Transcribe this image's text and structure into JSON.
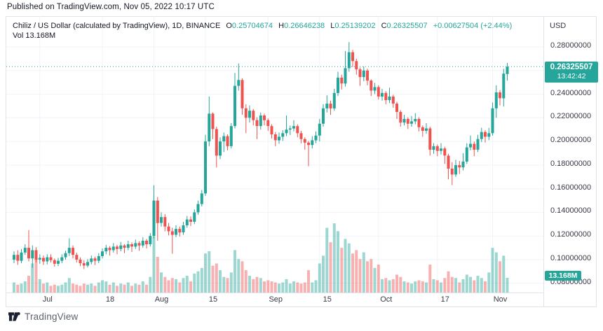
{
  "published_line": "Published on TradingView.com, Nov 05, 2022 10:17 UTC",
  "legend": {
    "title": "Chiliz / US Dollar (calculated by TradingView), 1D, BINANCE",
    "ohlc": [
      {
        "label": "O",
        "value": "0.25704674"
      },
      {
        "label": "H",
        "value": "0.26646238"
      },
      {
        "label": "L",
        "value": "0.25139202"
      },
      {
        "label": "C",
        "value": "0.26325507"
      }
    ],
    "change": "+0.00627504 (+2.44%)",
    "vol_label": "Vol",
    "vol_value": "13.168M"
  },
  "price_axis": {
    "currency": "USD",
    "ticks": [
      {
        "label": "0.28000000",
        "price": 0.28
      },
      {
        "label": "0.24000000",
        "price": 0.24
      },
      {
        "label": "0.22000000",
        "price": 0.22
      },
      {
        "label": "0.20000000",
        "price": 0.2
      },
      {
        "label": "0.18000000",
        "price": 0.18
      },
      {
        "label": "0.16000000",
        "price": 0.16
      },
      {
        "label": "0.14000000",
        "price": 0.14
      },
      {
        "label": "0.12000000",
        "price": 0.12
      },
      {
        "label": "0.10000000",
        "price": 0.1
      },
      {
        "label": "0.08000000",
        "price": 0.08
      }
    ],
    "price_badge": {
      "price_label": "0.26325507",
      "countdown": "13:42:42"
    },
    "volume_badge": {
      "label": "13.168M"
    }
  },
  "footer": {
    "brand": "TradingView"
  },
  "colors": {
    "up": "#26a69a",
    "down": "#ef5350",
    "vol_up": "rgba(38,166,154,0.45)",
    "vol_down": "rgba(239,83,80,0.45)",
    "grid": "#f0f3fa",
    "border": "#e0e3eb",
    "axis_text": "#363a45",
    "badge_bg": "#26a69a"
  },
  "chart_data": {
    "type": "candlestick",
    "pair": "Chiliz / US Dollar",
    "interval": "1D",
    "exchange": "BINANCE",
    "current_price": 0.26325507,
    "last_candle": {
      "open": 0.25704674,
      "high": 0.26646238,
      "low": 0.25139202,
      "close": 0.26325507,
      "change": "+0.00627504",
      "change_pct": "+2.44%",
      "volume": "13.168M"
    },
    "ylim": [
      0.08,
      0.295
    ],
    "price_gridlines": [
      0.28,
      0.26,
      0.24,
      0.22,
      0.2,
      0.18,
      0.16,
      0.14,
      0.12,
      0.1,
      0.08
    ],
    "time_ticks": [
      {
        "label": "Jul",
        "index": 7
      },
      {
        "label": "18",
        "index": 24
      },
      {
        "label": "Aug",
        "index": 38
      },
      {
        "label": "15",
        "index": 52
      },
      {
        "label": "Sep",
        "index": 69
      },
      {
        "label": "15",
        "index": 83
      },
      {
        "label": "Oct",
        "index": 99
      },
      {
        "label": "17",
        "index": 115
      },
      {
        "label": "Nov",
        "index": 130
      }
    ],
    "units": "candles are daily [open, high, low, close, volume_millions], values estimated from plot",
    "candles": [
      [
        0.1,
        0.107,
        0.097,
        0.104,
        9
      ],
      [
        0.104,
        0.108,
        0.0955,
        0.099,
        7
      ],
      [
        0.099,
        0.109,
        0.097,
        0.106,
        8
      ],
      [
        0.106,
        0.113,
        0.104,
        0.11,
        10
      ],
      [
        0.11,
        0.125,
        0.0985,
        0.101,
        15
      ],
      [
        0.101,
        0.112,
        0.093,
        0.108,
        26
      ],
      [
        0.108,
        0.1105,
        0.0975,
        0.1,
        31
      ],
      [
        0.1,
        0.1045,
        0.0965,
        0.1015,
        12
      ],
      [
        0.1015,
        0.1035,
        0.0955,
        0.0985,
        8
      ],
      [
        0.0985,
        0.1045,
        0.096,
        0.102,
        9
      ],
      [
        0.102,
        0.1045,
        0.0975,
        0.0995,
        6
      ],
      [
        0.0995,
        0.101,
        0.094,
        0.0965,
        7
      ],
      [
        0.0965,
        0.1015,
        0.0945,
        0.099,
        6
      ],
      [
        0.099,
        0.1045,
        0.097,
        0.102,
        7
      ],
      [
        0.102,
        0.1075,
        0.1,
        0.1055,
        9
      ],
      [
        0.1055,
        0.118,
        0.103,
        0.11,
        13
      ],
      [
        0.11,
        0.112,
        0.101,
        0.104,
        8
      ],
      [
        0.104,
        0.106,
        0.0975,
        0.1,
        7
      ],
      [
        0.1,
        0.102,
        0.0945,
        0.097,
        6
      ],
      [
        0.097,
        0.0995,
        0.092,
        0.095,
        8
      ],
      [
        0.095,
        0.1005,
        0.0935,
        0.098,
        7
      ],
      [
        0.098,
        0.1035,
        0.096,
        0.101,
        8
      ],
      [
        0.101,
        0.1025,
        0.0955,
        0.099,
        6
      ],
      [
        0.099,
        0.1055,
        0.097,
        0.103,
        9
      ],
      [
        0.103,
        0.1095,
        0.101,
        0.107,
        11
      ],
      [
        0.107,
        0.1125,
        0.1045,
        0.11,
        10
      ],
      [
        0.11,
        0.1115,
        0.1035,
        0.108,
        7
      ],
      [
        0.108,
        0.114,
        0.106,
        0.111,
        9
      ],
      [
        0.111,
        0.1125,
        0.1045,
        0.109,
        6
      ],
      [
        0.109,
        0.115,
        0.107,
        0.112,
        8
      ],
      [
        0.112,
        0.113,
        0.1055,
        0.11,
        7
      ],
      [
        0.11,
        0.116,
        0.108,
        0.113,
        9
      ],
      [
        0.113,
        0.1145,
        0.1065,
        0.111,
        6
      ],
      [
        0.111,
        0.117,
        0.109,
        0.114,
        8
      ],
      [
        0.114,
        0.1155,
        0.1075,
        0.112,
        7
      ],
      [
        0.112,
        0.119,
        0.11,
        0.116,
        10
      ],
      [
        0.116,
        0.1175,
        0.1095,
        0.113,
        7
      ],
      [
        0.113,
        0.1225,
        0.111,
        0.12,
        14
      ],
      [
        0.12,
        0.163,
        0.118,
        0.15,
        50
      ],
      [
        0.15,
        0.153,
        0.116,
        0.131,
        32
      ],
      [
        0.131,
        0.14,
        0.128,
        0.136,
        18
      ],
      [
        0.136,
        0.1385,
        0.124,
        0.128,
        14
      ],
      [
        0.128,
        0.131,
        0.1205,
        0.124,
        11
      ],
      [
        0.124,
        0.127,
        0.105,
        0.121,
        13
      ],
      [
        0.121,
        0.129,
        0.119,
        0.126,
        12
      ],
      [
        0.126,
        0.128,
        0.1195,
        0.123,
        9
      ],
      [
        0.123,
        0.132,
        0.121,
        0.129,
        13
      ],
      [
        0.129,
        0.137,
        0.127,
        0.134,
        15
      ],
      [
        0.134,
        0.1365,
        0.1285,
        0.132,
        10
      ],
      [
        0.132,
        0.1425,
        0.13,
        0.14,
        17
      ],
      [
        0.14,
        0.15,
        0.138,
        0.147,
        19
      ],
      [
        0.147,
        0.159,
        0.145,
        0.156,
        22
      ],
      [
        0.156,
        0.2055,
        0.154,
        0.2,
        35
      ],
      [
        0.2,
        0.238,
        0.196,
        0.2235,
        37
      ],
      [
        0.2235,
        0.2245,
        0.202,
        0.2105,
        24
      ],
      [
        0.2105,
        0.2125,
        0.178,
        0.188,
        26
      ],
      [
        0.188,
        0.2035,
        0.185,
        0.2,
        20
      ],
      [
        0.2,
        0.2075,
        0.191,
        0.2045,
        14
      ],
      [
        0.2045,
        0.206,
        0.1925,
        0.196,
        13
      ],
      [
        0.196,
        0.2155,
        0.194,
        0.213,
        18
      ],
      [
        0.213,
        0.258,
        0.211,
        0.247,
        38
      ],
      [
        0.247,
        0.266,
        0.243,
        0.252,
        30
      ],
      [
        0.252,
        0.2535,
        0.2225,
        0.228,
        28
      ],
      [
        0.228,
        0.2315,
        0.207,
        0.22,
        20
      ],
      [
        0.22,
        0.2305,
        0.216,
        0.226,
        15
      ],
      [
        0.226,
        0.2275,
        0.2135,
        0.218,
        12
      ],
      [
        0.218,
        0.2205,
        0.202,
        0.213,
        14
      ],
      [
        0.213,
        0.2245,
        0.21,
        0.222,
        13
      ],
      [
        0.222,
        0.2235,
        0.2135,
        0.218,
        10
      ],
      [
        0.218,
        0.2195,
        0.209,
        0.213,
        11
      ],
      [
        0.213,
        0.2145,
        0.2025,
        0.206,
        10
      ],
      [
        0.206,
        0.208,
        0.196,
        0.201,
        9
      ],
      [
        0.201,
        0.2075,
        0.198,
        0.204,
        8
      ],
      [
        0.204,
        0.2095,
        0.2005,
        0.207,
        9
      ],
      [
        0.207,
        0.222,
        0.2045,
        0.21,
        12
      ],
      [
        0.21,
        0.2135,
        0.2055,
        0.211,
        8
      ],
      [
        0.211,
        0.218,
        0.2085,
        0.213,
        10
      ],
      [
        0.213,
        0.2145,
        0.2035,
        0.207,
        9
      ],
      [
        0.207,
        0.209,
        0.1985,
        0.202,
        8
      ],
      [
        0.202,
        0.2035,
        0.193,
        0.199,
        9
      ],
      [
        0.199,
        0.2005,
        0.179,
        0.197,
        20
      ],
      [
        0.197,
        0.2045,
        0.194,
        0.201,
        9
      ],
      [
        0.201,
        0.2085,
        0.1985,
        0.205,
        11
      ],
      [
        0.205,
        0.219,
        0.2,
        0.215,
        26
      ],
      [
        0.215,
        0.2315,
        0.2125,
        0.228,
        33
      ],
      [
        0.228,
        0.239,
        0.2245,
        0.232,
        58
      ],
      [
        0.232,
        0.2345,
        0.2225,
        0.228,
        45
      ],
      [
        0.228,
        0.2445,
        0.226,
        0.241,
        62
      ],
      [
        0.241,
        0.259,
        0.2385,
        0.254,
        55
      ],
      [
        0.254,
        0.2565,
        0.244,
        0.249,
        40
      ],
      [
        0.249,
        0.2765,
        0.2465,
        0.262,
        48
      ],
      [
        0.262,
        0.284,
        0.259,
        0.2755,
        44
      ],
      [
        0.2755,
        0.2775,
        0.263,
        0.268,
        35
      ],
      [
        0.268,
        0.27,
        0.2565,
        0.261,
        38
      ],
      [
        0.261,
        0.2625,
        0.247,
        0.2545,
        30
      ],
      [
        0.2545,
        0.2635,
        0.251,
        0.26,
        36
      ],
      [
        0.26,
        0.2615,
        0.2475,
        0.2515,
        28
      ],
      [
        0.2515,
        0.2525,
        0.2385,
        0.243,
        30
      ],
      [
        0.243,
        0.2495,
        0.24,
        0.246,
        22
      ],
      [
        0.246,
        0.2475,
        0.2355,
        0.238,
        25
      ],
      [
        0.238,
        0.2445,
        0.2345,
        0.241,
        12
      ],
      [
        0.241,
        0.2425,
        0.2315,
        0.235,
        13
      ],
      [
        0.235,
        0.2455,
        0.2325,
        0.238,
        11
      ],
      [
        0.238,
        0.2395,
        0.2285,
        0.232,
        12
      ],
      [
        0.232,
        0.2335,
        0.219,
        0.225,
        16
      ],
      [
        0.225,
        0.2265,
        0.2125,
        0.216,
        14
      ],
      [
        0.216,
        0.2225,
        0.2135,
        0.219,
        10
      ],
      [
        0.219,
        0.2205,
        0.2105,
        0.215,
        9
      ],
      [
        0.215,
        0.2215,
        0.2125,
        0.217,
        8
      ],
      [
        0.217,
        0.224,
        0.2145,
        0.219,
        10
      ],
      [
        0.219,
        0.2205,
        0.2085,
        0.212,
        11
      ],
      [
        0.212,
        0.2135,
        0.204,
        0.209,
        10
      ],
      [
        0.209,
        0.2155,
        0.2065,
        0.211,
        9
      ],
      [
        0.211,
        0.2125,
        0.188,
        0.193,
        25
      ],
      [
        0.193,
        0.1985,
        0.1895,
        0.196,
        12
      ],
      [
        0.196,
        0.1975,
        0.1875,
        0.192,
        11
      ],
      [
        0.192,
        0.1985,
        0.189,
        0.194,
        9
      ],
      [
        0.194,
        0.1955,
        0.181,
        0.188,
        13
      ],
      [
        0.188,
        0.1895,
        0.168,
        0.177,
        19
      ],
      [
        0.177,
        0.1825,
        0.163,
        0.172,
        14
      ],
      [
        0.172,
        0.1845,
        0.17,
        0.18,
        13
      ],
      [
        0.18,
        0.1835,
        0.1725,
        0.178,
        9
      ],
      [
        0.178,
        0.19,
        0.1755,
        0.183,
        12
      ],
      [
        0.183,
        0.1985,
        0.181,
        0.195,
        16
      ],
      [
        0.195,
        0.205,
        0.1925,
        0.198,
        14
      ],
      [
        0.198,
        0.2,
        0.1875,
        0.193,
        11
      ],
      [
        0.193,
        0.2055,
        0.191,
        0.202,
        15
      ],
      [
        0.202,
        0.2115,
        0.1995,
        0.208,
        13
      ],
      [
        0.208,
        0.2095,
        0.199,
        0.204,
        10
      ],
      [
        0.204,
        0.2115,
        0.201,
        0.207,
        18
      ],
      [
        0.207,
        0.233,
        0.205,
        0.228,
        40
      ],
      [
        0.228,
        0.2475,
        0.22,
        0.2415,
        36
      ],
      [
        0.2415,
        0.2435,
        0.2305,
        0.2365,
        28
      ],
      [
        0.2365,
        0.2615,
        0.2295,
        0.2574,
        33
      ],
      [
        0.25704674,
        0.26646238,
        0.25139202,
        0.26325507,
        13.168
      ]
    ]
  }
}
